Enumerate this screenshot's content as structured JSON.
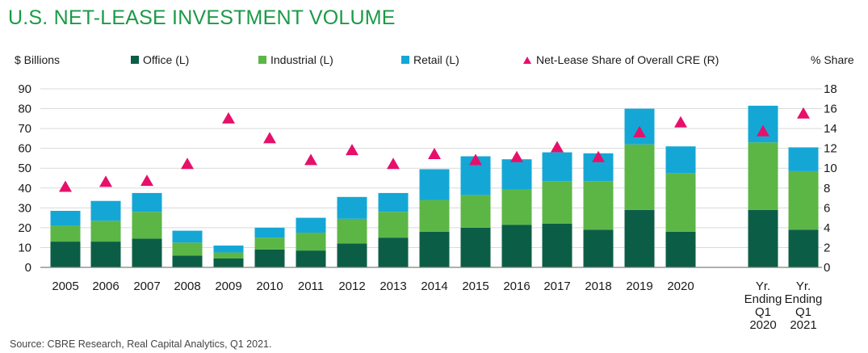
{
  "chart_data": {
    "type": "bar",
    "title": "U.S. NET-LEASE INVESTMENT VOLUME",
    "ylabel": "$ Billions",
    "y2label": "% Share",
    "ylim": [
      0,
      90
    ],
    "y2lim": [
      0,
      18
    ],
    "yticks": [
      "0",
      "10",
      "20",
      "30",
      "40",
      "50",
      "60",
      "70",
      "80",
      "90"
    ],
    "y2ticks": [
      "0",
      "2",
      "4",
      "6",
      "8",
      "10",
      "12",
      "14",
      "16",
      "18"
    ],
    "categories": [
      [
        "2005"
      ],
      [
        "2006"
      ],
      [
        "2007"
      ],
      [
        "2008"
      ],
      [
        "2009"
      ],
      [
        "2010"
      ],
      [
        "2011"
      ],
      [
        "2012"
      ],
      [
        "2013"
      ],
      [
        "2014"
      ],
      [
        "2015"
      ],
      [
        "2016"
      ],
      [
        "2017"
      ],
      [
        "2018"
      ],
      [
        "2019"
      ],
      [
        "2020"
      ],
      [
        "Yr.",
        "Ending",
        "Q1",
        "2020"
      ],
      [
        "Yr.",
        "Ending",
        "Q1",
        "2021"
      ]
    ],
    "series": [
      {
        "name": "Office (L)",
        "kind": "stacked-bar",
        "axis": "left",
        "color": "#0b5e45",
        "values": [
          13,
          13,
          14.5,
          6,
          4.5,
          9,
          8.5,
          12,
          15,
          18,
          20,
          21.5,
          22,
          19,
          29,
          18,
          29,
          19
        ]
      },
      {
        "name": "Industrial (L)",
        "kind": "stacked-bar",
        "axis": "left",
        "color": "#5cb646",
        "values": [
          8,
          10.5,
          13.5,
          6.5,
          3,
          6,
          9,
          12.5,
          13,
          16,
          16.5,
          18,
          21.5,
          24.5,
          33,
          29.5,
          34,
          29.5
        ]
      },
      {
        "name": "Retail (L)",
        "kind": "stacked-bar",
        "axis": "left",
        "color": "#14a7d6",
        "values": [
          7.5,
          10,
          9.5,
          6,
          3.5,
          5,
          7.5,
          11,
          9.5,
          15.5,
          19.5,
          15,
          14.5,
          14,
          18,
          13.5,
          18.5,
          12
        ]
      },
      {
        "name": "Net-Lease Share of Overall CRE (R)",
        "kind": "marker",
        "axis": "right",
        "color": "#e6106a",
        "values": [
          8.1,
          8.6,
          8.7,
          10.4,
          15.0,
          13.0,
          10.8,
          11.8,
          10.4,
          11.4,
          10.8,
          11.1,
          12.1,
          11.1,
          13.6,
          14.6,
          13.7,
          15.5
        ]
      }
    ],
    "source": "Source: CBRE Research, Real Capital Analytics, Q1 2021."
  }
}
